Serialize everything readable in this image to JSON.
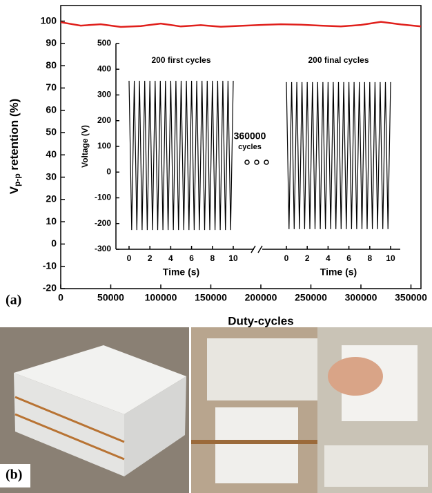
{
  "chart_data": [
    {
      "type": "line",
      "xlabel": "Duty-cycles",
      "ylabel": "V",
      "ylabel_sub": "p-p",
      "ylabel_rest": " retention (%)",
      "xlim": [
        0,
        360000
      ],
      "ylim": [
        -20,
        107
      ],
      "xticks": [
        0,
        50000,
        100000,
        150000,
        200000,
        250000,
        300000,
        350000
      ],
      "yticks": [
        -20,
        -10,
        0,
        10,
        20,
        30,
        40,
        50,
        60,
        70,
        80,
        90,
        100
      ],
      "series": [
        {
          "color": "#e0201c",
          "x": [
            0,
            20000,
            40000,
            60000,
            80000,
            100000,
            120000,
            140000,
            160000,
            180000,
            200000,
            220000,
            240000,
            260000,
            280000,
            300000,
            320000,
            340000,
            360000
          ],
          "values": [
            99.5,
            98,
            98.6,
            97.4,
            97.8,
            98.9,
            97.6,
            98.2,
            97.5,
            97.9,
            98.3,
            98.6,
            98.4,
            98.0,
            97.6,
            98.3,
            99.7,
            98.5,
            97.6
          ]
        }
      ]
    },
    {
      "type": "segmented-line",
      "ylabel": "Voltage (V)",
      "ylim": [
        -300,
        500
      ],
      "yticks": [
        -300,
        -200,
        -100,
        0,
        100,
        200,
        300,
        400,
        500
      ],
      "annotation": "360000",
      "annotation_sub": "cycles",
      "annotation_color": "#e0201c",
      "color": "#000000",
      "segments": [
        {
          "label": "200 first cycles",
          "xlabel": "Time (s)",
          "xlim": [
            0,
            10
          ],
          "xticks": [
            0,
            2,
            4,
            6,
            8,
            10
          ],
          "x": [
            0,
            0.25,
            0.5,
            0.75,
            1,
            1.25,
            1.5,
            1.75,
            2,
            2.25,
            2.5,
            2.75,
            3,
            3.25,
            3.5,
            3.75,
            4,
            4.25,
            4.5,
            4.75,
            5,
            5.25,
            5.5,
            5.75,
            6,
            6.25,
            6.5,
            6.75,
            7,
            7.25,
            7.5,
            7.75,
            8,
            8.25,
            8.5,
            8.75,
            9,
            9.25,
            9.5,
            9.75,
            10
          ],
          "values": [
            355,
            -225,
            355,
            -225,
            355,
            -225,
            355,
            -225,
            355,
            -225,
            355,
            -225,
            355,
            -225,
            355,
            -225,
            355,
            -225,
            355,
            -225,
            355,
            -225,
            355,
            -225,
            355,
            -225,
            355,
            -225,
            355,
            -225,
            355,
            -225,
            355,
            -225,
            355,
            -225,
            355,
            -225,
            355,
            -225,
            355
          ]
        },
        {
          "label": "200 final cycles",
          "xlabel": "Time (s)",
          "xlim": [
            0,
            10
          ],
          "xticks": [
            0,
            2,
            4,
            6,
            8,
            10
          ],
          "x": [
            0,
            0.25,
            0.5,
            0.75,
            1,
            1.25,
            1.5,
            1.75,
            2,
            2.25,
            2.5,
            2.75,
            3,
            3.25,
            3.5,
            3.75,
            4,
            4.25,
            4.5,
            4.75,
            5,
            5.25,
            5.5,
            5.75,
            6,
            6.25,
            6.5,
            6.75,
            7,
            7.25,
            7.5,
            7.75,
            8,
            8.25,
            8.5,
            8.75,
            9,
            9.25,
            9.5,
            9.75,
            10
          ],
          "values": [
            350,
            -222,
            350,
            -222,
            350,
            -222,
            350,
            -222,
            350,
            -222,
            350,
            -222,
            350,
            -222,
            350,
            -222,
            350,
            -222,
            350,
            -222,
            350,
            -222,
            350,
            -222,
            350,
            -222,
            350,
            -222,
            350,
            -222,
            350,
            -222,
            350,
            -222,
            350,
            -222,
            350,
            -222,
            350,
            -222,
            350
          ]
        }
      ]
    }
  ],
  "panel_labels": [
    "(a)",
    "(b)"
  ]
}
